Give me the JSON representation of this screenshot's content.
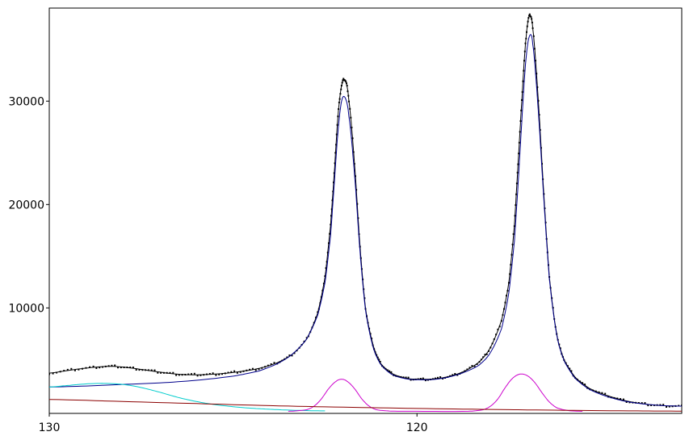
{
  "chart_data": {
    "type": "line",
    "title": "",
    "xlabel": "",
    "ylabel": "",
    "x_reversed": true,
    "xlim": [
      130,
      112.8
    ],
    "ylim": [
      -200,
      39000
    ],
    "grid": false,
    "legend": "none",
    "x_ticks": [
      130,
      120
    ],
    "y_ticks": [
      10000,
      20000,
      30000
    ],
    "series": [
      {
        "color": "#000000",
        "style": "dots",
        "points": [
          [
            130,
            3700
          ],
          [
            129.4,
            4000
          ],
          [
            128.8,
            4250
          ],
          [
            128.3,
            4350
          ],
          [
            127.8,
            4200
          ],
          [
            127.3,
            3950
          ],
          [
            126.8,
            3700
          ],
          [
            126.3,
            3550
          ],
          [
            125.8,
            3550
          ],
          [
            125.3,
            3650
          ],
          [
            124.8,
            3850
          ],
          [
            124.3,
            4150
          ],
          [
            123.8,
            4700
          ],
          [
            123.4,
            5500
          ],
          [
            123.0,
            7000
          ],
          [
            122.7,
            9500
          ],
          [
            122.5,
            13000
          ],
          [
            122.35,
            18000
          ],
          [
            122.25,
            23000
          ],
          [
            122.15,
            28500
          ],
          [
            122.05,
            31500
          ],
          [
            121.95,
            32000
          ],
          [
            121.85,
            30000
          ],
          [
            121.7,
            24000
          ],
          [
            121.55,
            16000
          ],
          [
            121.4,
            10000
          ],
          [
            121.2,
            6500
          ],
          [
            121.0,
            4700
          ],
          [
            120.7,
            3700
          ],
          [
            120.3,
            3200
          ],
          [
            119.9,
            3100
          ],
          [
            119.5,
            3150
          ],
          [
            119.1,
            3400
          ],
          [
            118.7,
            3900
          ],
          [
            118.3,
            4800
          ],
          [
            118.0,
            6200
          ],
          [
            117.7,
            8800
          ],
          [
            117.5,
            12500
          ],
          [
            117.35,
            18000
          ],
          [
            117.25,
            24000
          ],
          [
            117.15,
            30000
          ],
          [
            117.05,
            35500
          ],
          [
            116.95,
            38200
          ],
          [
            116.85,
            37000
          ],
          [
            116.7,
            30000
          ],
          [
            116.55,
            21000
          ],
          [
            116.4,
            13000
          ],
          [
            116.2,
            7500
          ],
          [
            116.0,
            5000
          ],
          [
            115.7,
            3300
          ],
          [
            115.3,
            2200
          ],
          [
            114.8,
            1500
          ],
          [
            114.3,
            1000
          ],
          [
            113.8,
            700
          ],
          [
            113.3,
            550
          ],
          [
            112.8,
            500
          ]
        ]
      },
      {
        "color": "#000000",
        "style": "line",
        "points": [
          [
            130,
            3700
          ],
          [
            129.4,
            4000
          ],
          [
            128.8,
            4250
          ],
          [
            128.3,
            4350
          ],
          [
            127.8,
            4200
          ],
          [
            127.3,
            3950
          ],
          [
            126.8,
            3700
          ],
          [
            126.3,
            3550
          ],
          [
            125.8,
            3550
          ],
          [
            125.3,
            3650
          ],
          [
            124.8,
            3850
          ],
          [
            124.3,
            4150
          ],
          [
            123.8,
            4700
          ],
          [
            123.4,
            5500
          ],
          [
            123.0,
            7000
          ],
          [
            122.7,
            9500
          ],
          [
            122.5,
            13000
          ],
          [
            122.35,
            18000
          ],
          [
            122.25,
            23000
          ],
          [
            122.15,
            28500
          ],
          [
            122.05,
            31500
          ],
          [
            121.95,
            32000
          ],
          [
            121.85,
            30000
          ],
          [
            121.7,
            24000
          ],
          [
            121.55,
            16000
          ],
          [
            121.4,
            10000
          ],
          [
            121.2,
            6500
          ],
          [
            121.0,
            4700
          ],
          [
            120.7,
            3700
          ],
          [
            120.3,
            3200
          ],
          [
            119.9,
            3100
          ],
          [
            119.5,
            3150
          ],
          [
            119.1,
            3400
          ],
          [
            118.7,
            3900
          ],
          [
            118.3,
            4800
          ],
          [
            118.0,
            6200
          ],
          [
            117.7,
            8800
          ],
          [
            117.5,
            12500
          ],
          [
            117.35,
            18000
          ],
          [
            117.25,
            24000
          ],
          [
            117.15,
            30000
          ],
          [
            117.05,
            35500
          ],
          [
            116.95,
            38200
          ],
          [
            116.85,
            37000
          ],
          [
            116.7,
            30000
          ],
          [
            116.55,
            21000
          ],
          [
            116.4,
            13000
          ],
          [
            116.2,
            7500
          ],
          [
            116.0,
            5000
          ],
          [
            115.7,
            3300
          ],
          [
            115.3,
            2200
          ],
          [
            114.8,
            1500
          ],
          [
            114.3,
            1000
          ],
          [
            113.8,
            700
          ],
          [
            113.3,
            550
          ],
          [
            112.8,
            500
          ]
        ]
      },
      {
        "color": "#00008b",
        "style": "line",
        "points": [
          [
            130,
            2350
          ],
          [
            129.0,
            2450
          ],
          [
            128.0,
            2600
          ],
          [
            127.0,
            2750
          ],
          [
            126.0,
            3000
          ],
          [
            125.0,
            3400
          ],
          [
            124.3,
            3900
          ],
          [
            123.8,
            4600
          ],
          [
            123.4,
            5500
          ],
          [
            123.0,
            7000
          ],
          [
            122.7,
            9300
          ],
          [
            122.5,
            12500
          ],
          [
            122.35,
            17000
          ],
          [
            122.25,
            22000
          ],
          [
            122.15,
            27000
          ],
          [
            122.05,
            30000
          ],
          [
            121.95,
            30300
          ],
          [
            121.85,
            28500
          ],
          [
            121.7,
            23000
          ],
          [
            121.55,
            15500
          ],
          [
            121.4,
            9800
          ],
          [
            121.2,
            6300
          ],
          [
            121.0,
            4600
          ],
          [
            120.7,
            3600
          ],
          [
            120.3,
            3150
          ],
          [
            119.9,
            3050
          ],
          [
            119.5,
            3100
          ],
          [
            119.1,
            3350
          ],
          [
            118.7,
            3800
          ],
          [
            118.3,
            4500
          ],
          [
            118.0,
            5700
          ],
          [
            117.7,
            8000
          ],
          [
            117.5,
            11500
          ],
          [
            117.35,
            16500
          ],
          [
            117.25,
            22000
          ],
          [
            117.15,
            28000
          ],
          [
            117.05,
            33500
          ],
          [
            116.95,
            36200
          ],
          [
            116.85,
            35500
          ],
          [
            116.7,
            29000
          ],
          [
            116.55,
            20500
          ],
          [
            116.4,
            12800
          ],
          [
            116.2,
            7400
          ],
          [
            116.0,
            4900
          ],
          [
            115.7,
            3200
          ],
          [
            115.3,
            2100
          ],
          [
            114.8,
            1400
          ],
          [
            114.3,
            950
          ],
          [
            113.8,
            700
          ],
          [
            113.3,
            550
          ],
          [
            112.8,
            500
          ]
        ]
      },
      {
        "color": "#00cccc",
        "style": "line",
        "points": [
          [
            130,
            2350
          ],
          [
            129.5,
            2500
          ],
          [
            129.0,
            2650
          ],
          [
            128.5,
            2700
          ],
          [
            128.0,
            2600
          ],
          [
            127.5,
            2300
          ],
          [
            127.0,
            1850
          ],
          [
            126.5,
            1350
          ],
          [
            126.0,
            950
          ],
          [
            125.5,
            650
          ],
          [
            125.0,
            450
          ],
          [
            124.5,
            300
          ],
          [
            124.0,
            200
          ],
          [
            123.5,
            120
          ],
          [
            123.0,
            70
          ],
          [
            122.5,
            40
          ]
        ]
      },
      {
        "color": "#cc00cc",
        "style": "line",
        "points": [
          [
            123.5,
            0
          ],
          [
            123.0,
            150
          ],
          [
            122.8,
            500
          ],
          [
            122.6,
            1200
          ],
          [
            122.4,
            2200
          ],
          [
            122.2,
            2900
          ],
          [
            122.05,
            3100
          ],
          [
            121.9,
            2900
          ],
          [
            121.7,
            2200
          ],
          [
            121.5,
            1200
          ],
          [
            121.3,
            500
          ],
          [
            121.1,
            150
          ],
          [
            120.7,
            20
          ],
          [
            120.0,
            0
          ],
          [
            118.6,
            0
          ],
          [
            118.2,
            150
          ],
          [
            118.0,
            500
          ],
          [
            117.8,
            1200
          ],
          [
            117.6,
            2300
          ],
          [
            117.4,
            3200
          ],
          [
            117.2,
            3600
          ],
          [
            117.0,
            3450
          ],
          [
            116.8,
            2800
          ],
          [
            116.6,
            1800
          ],
          [
            116.4,
            900
          ],
          [
            116.2,
            350
          ],
          [
            115.9,
            80
          ],
          [
            115.5,
            0
          ]
        ]
      },
      {
        "color": "#8b0000",
        "style": "line",
        "points": [
          [
            130,
            1150
          ],
          [
            128.0,
            950
          ],
          [
            126.0,
            750
          ],
          [
            124.0,
            550
          ],
          [
            122.0,
            400
          ],
          [
            120.0,
            280
          ],
          [
            118.0,
            180
          ],
          [
            116.0,
            100
          ],
          [
            114.0,
            40
          ],
          [
            112.8,
            20
          ]
        ]
      }
    ]
  }
}
